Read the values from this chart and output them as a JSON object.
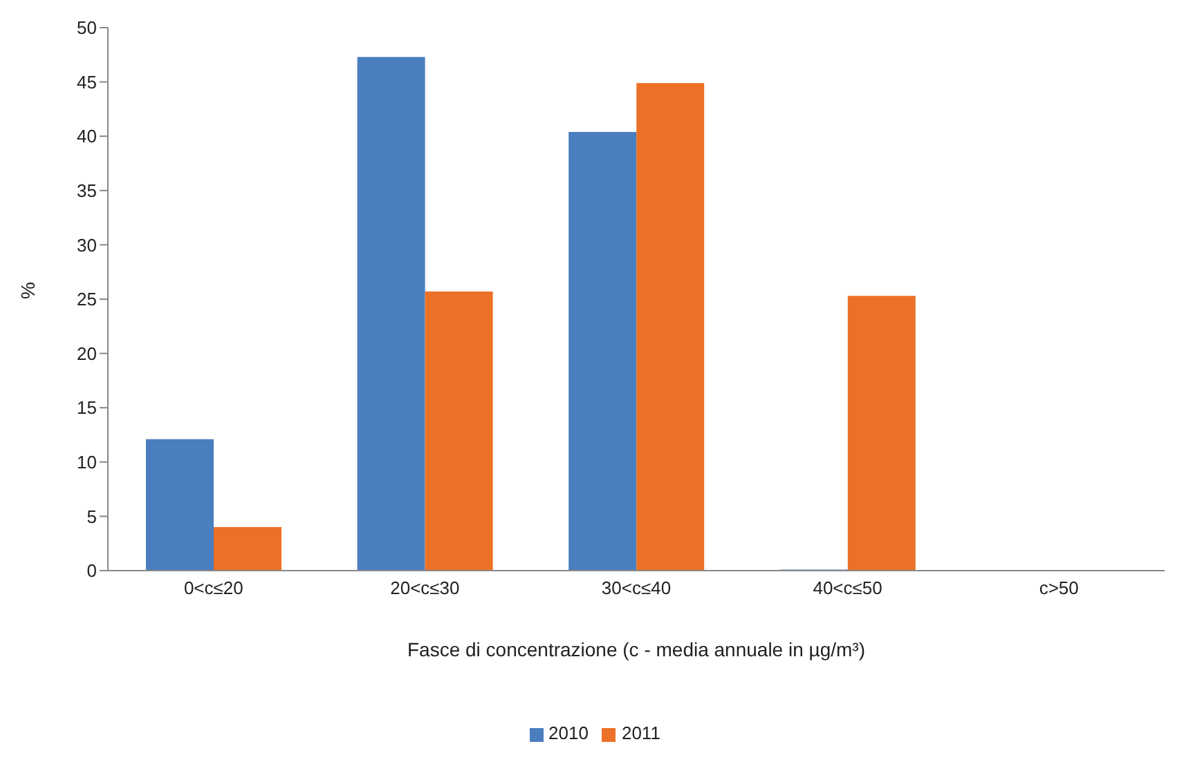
{
  "chart_data": {
    "type": "bar",
    "xlabel": "Fasce di concentrazione (c - media annuale in µg/m³)",
    "ylabel": "%",
    "categories": [
      "0<c≤20",
      "20<c≤30",
      "30<c≤40",
      "40<c≤50",
      "c>50"
    ],
    "series": [
      {
        "name": "2010",
        "color": "#4a7ebf",
        "values": [
          12.1,
          47.3,
          40.4,
          0.1,
          0
        ]
      },
      {
        "name": "2011",
        "color": "#ec7126",
        "values": [
          4.0,
          25.7,
          44.9,
          25.3,
          0
        ]
      }
    ],
    "ylim": [
      0,
      50
    ],
    "yticks": [
      0,
      5,
      10,
      15,
      20,
      25,
      30,
      35,
      40,
      45,
      50
    ],
    "grid": false,
    "legend": "bottom"
  }
}
